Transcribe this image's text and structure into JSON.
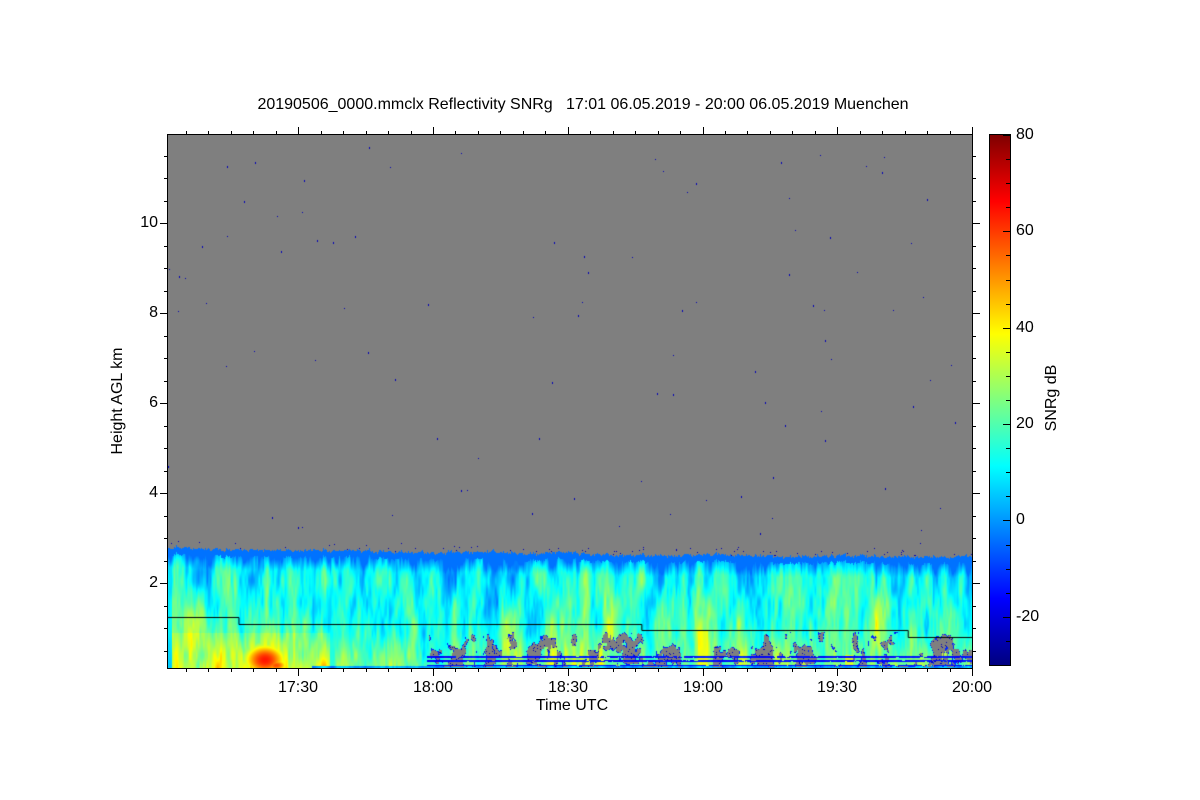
{
  "title": "20190506_0000.mmclx Reflectivity SNRg   17:01 06.05.2019 - 20:00 06.05.2019 Muenchen",
  "station": "Muenchen",
  "file": "20190506_0000.mmclx",
  "quantity": "Reflectivity SNRg",
  "time_span": "17:01 06.05.2019 - 20:00 06.05.2019",
  "axes": {
    "x": {
      "label": "Time UTC",
      "start": "17:01",
      "end": "20:00",
      "duration_min": 179,
      "ticks": [
        {
          "min": 29,
          "label": "17:30"
        },
        {
          "min": 59,
          "label": "18:00"
        },
        {
          "min": 89,
          "label": "18:30"
        },
        {
          "min": 119,
          "label": "19:00"
        },
        {
          "min": 149,
          "label": "19:30"
        },
        {
          "min": 179,
          "label": "20:00"
        }
      ],
      "minor_step_min": 5
    },
    "y": {
      "label": "Height AGL km",
      "range_km": [
        0.11,
        11.95
      ],
      "ticks": [
        {
          "km": 2,
          "label": "2"
        },
        {
          "km": 4,
          "label": "4"
        },
        {
          "km": 6,
          "label": "6"
        },
        {
          "km": 8,
          "label": "8"
        },
        {
          "km": 10,
          "label": "10"
        }
      ],
      "minor_step_km": 0.5
    }
  },
  "colorbar": {
    "label": "SNRg dB",
    "range_db": [
      -30,
      80
    ],
    "ticks": [
      {
        "db": 80,
        "label": "80"
      },
      {
        "db": 60,
        "label": "60"
      },
      {
        "db": 40,
        "label": "40"
      },
      {
        "db": 20,
        "label": "20"
      },
      {
        "db": 0,
        "label": "0"
      },
      {
        "db": -20,
        "label": "-20"
      }
    ],
    "minor_step_db": 5,
    "colormap": "jet",
    "colormap_stops": [
      "#000080",
      "#0000ff",
      "#00ffff",
      "#ffff00",
      "#ff0000",
      "#800000"
    ]
  },
  "chart_data": {
    "type": "heatmap",
    "title": "20190506_0000.mmclx Reflectivity SNRg   17:01 06.05.2019 - 20:00 06.05.2019 Muenchen",
    "xlabel": "Time UTC",
    "ylabel": "Height AGL km",
    "value_label": "SNRg dB",
    "value_range_db": [
      -30,
      80
    ],
    "no_signal_color": "#7f7f7f",
    "background_meaning": "gray = below detection threshold / no signal",
    "echo_top_km": {
      "t_min": [
        0,
        10,
        20,
        30,
        40,
        50,
        60,
        70,
        80,
        90,
        100,
        110,
        120,
        130,
        140,
        150,
        160,
        170,
        179
      ],
      "values": [
        2.8,
        2.76,
        2.74,
        2.72,
        2.74,
        2.7,
        2.68,
        2.72,
        2.66,
        2.68,
        2.63,
        2.61,
        2.65,
        2.61,
        2.59,
        2.63,
        2.6,
        2.58,
        2.6
      ]
    },
    "boundary_line_km": [
      {
        "from": "17:01",
        "from_min": 0,
        "to": "17:17",
        "to_min": 15.8,
        "height_km": 1.24
      },
      {
        "from": "17:17",
        "from_min": 15.8,
        "to": "18:47",
        "to_min": 105.5,
        "height_km": 1.09
      },
      {
        "from": "18:47",
        "from_min": 105.5,
        "to": "19:46",
        "to_min": 164.8,
        "height_km": 0.96
      },
      {
        "from": "19:46",
        "from_min": 164.8,
        "to": "20:00",
        "to_min": 179,
        "height_km": 0.8
      }
    ],
    "features": [
      {
        "name": "boundary-layer echo band",
        "time": "17:01-20:00",
        "height_km": "0.11-2.7",
        "snr_db": "0 to 35",
        "appearance": "cyan-green turbulent plumes with thin dark-blue rim at echo top"
      },
      {
        "name": "strong low-level plume",
        "time": "17:15-17:25",
        "height_km": "0.1-1.0",
        "snr_db": "45 to 65",
        "appearance": "orange-red core near surface"
      },
      {
        "name": "enhanced near-surface layer",
        "time": "17:01-17:35",
        "height_km": "0-1.4",
        "snr_db": "30 to 45",
        "appearance": "yellow-orange"
      },
      {
        "name": "echo-free gaps with noise speckle",
        "time": "18:00-20:00",
        "height_km": "0.15-0.9",
        "appearance": "gray mounds rimmed dark blue"
      },
      {
        "name": "vertical high-SNR streak",
        "time": "19:00",
        "height_km": "0-0.9",
        "snr_db": "~38"
      },
      {
        "name": "vertical high-SNR streak",
        "time": "19:32",
        "height_km": "0-0.4",
        "snr_db": "~40"
      },
      {
        "name": "horizontal interference stripes",
        "time": "18:00-20:00",
        "heights_km": [
          0.18,
          0.27,
          0.36
        ],
        "snr_db": "~-15"
      },
      {
        "name": "noise speckles on no-signal background",
        "count_estimate": 95,
        "color": "#0000bb"
      }
    ]
  }
}
